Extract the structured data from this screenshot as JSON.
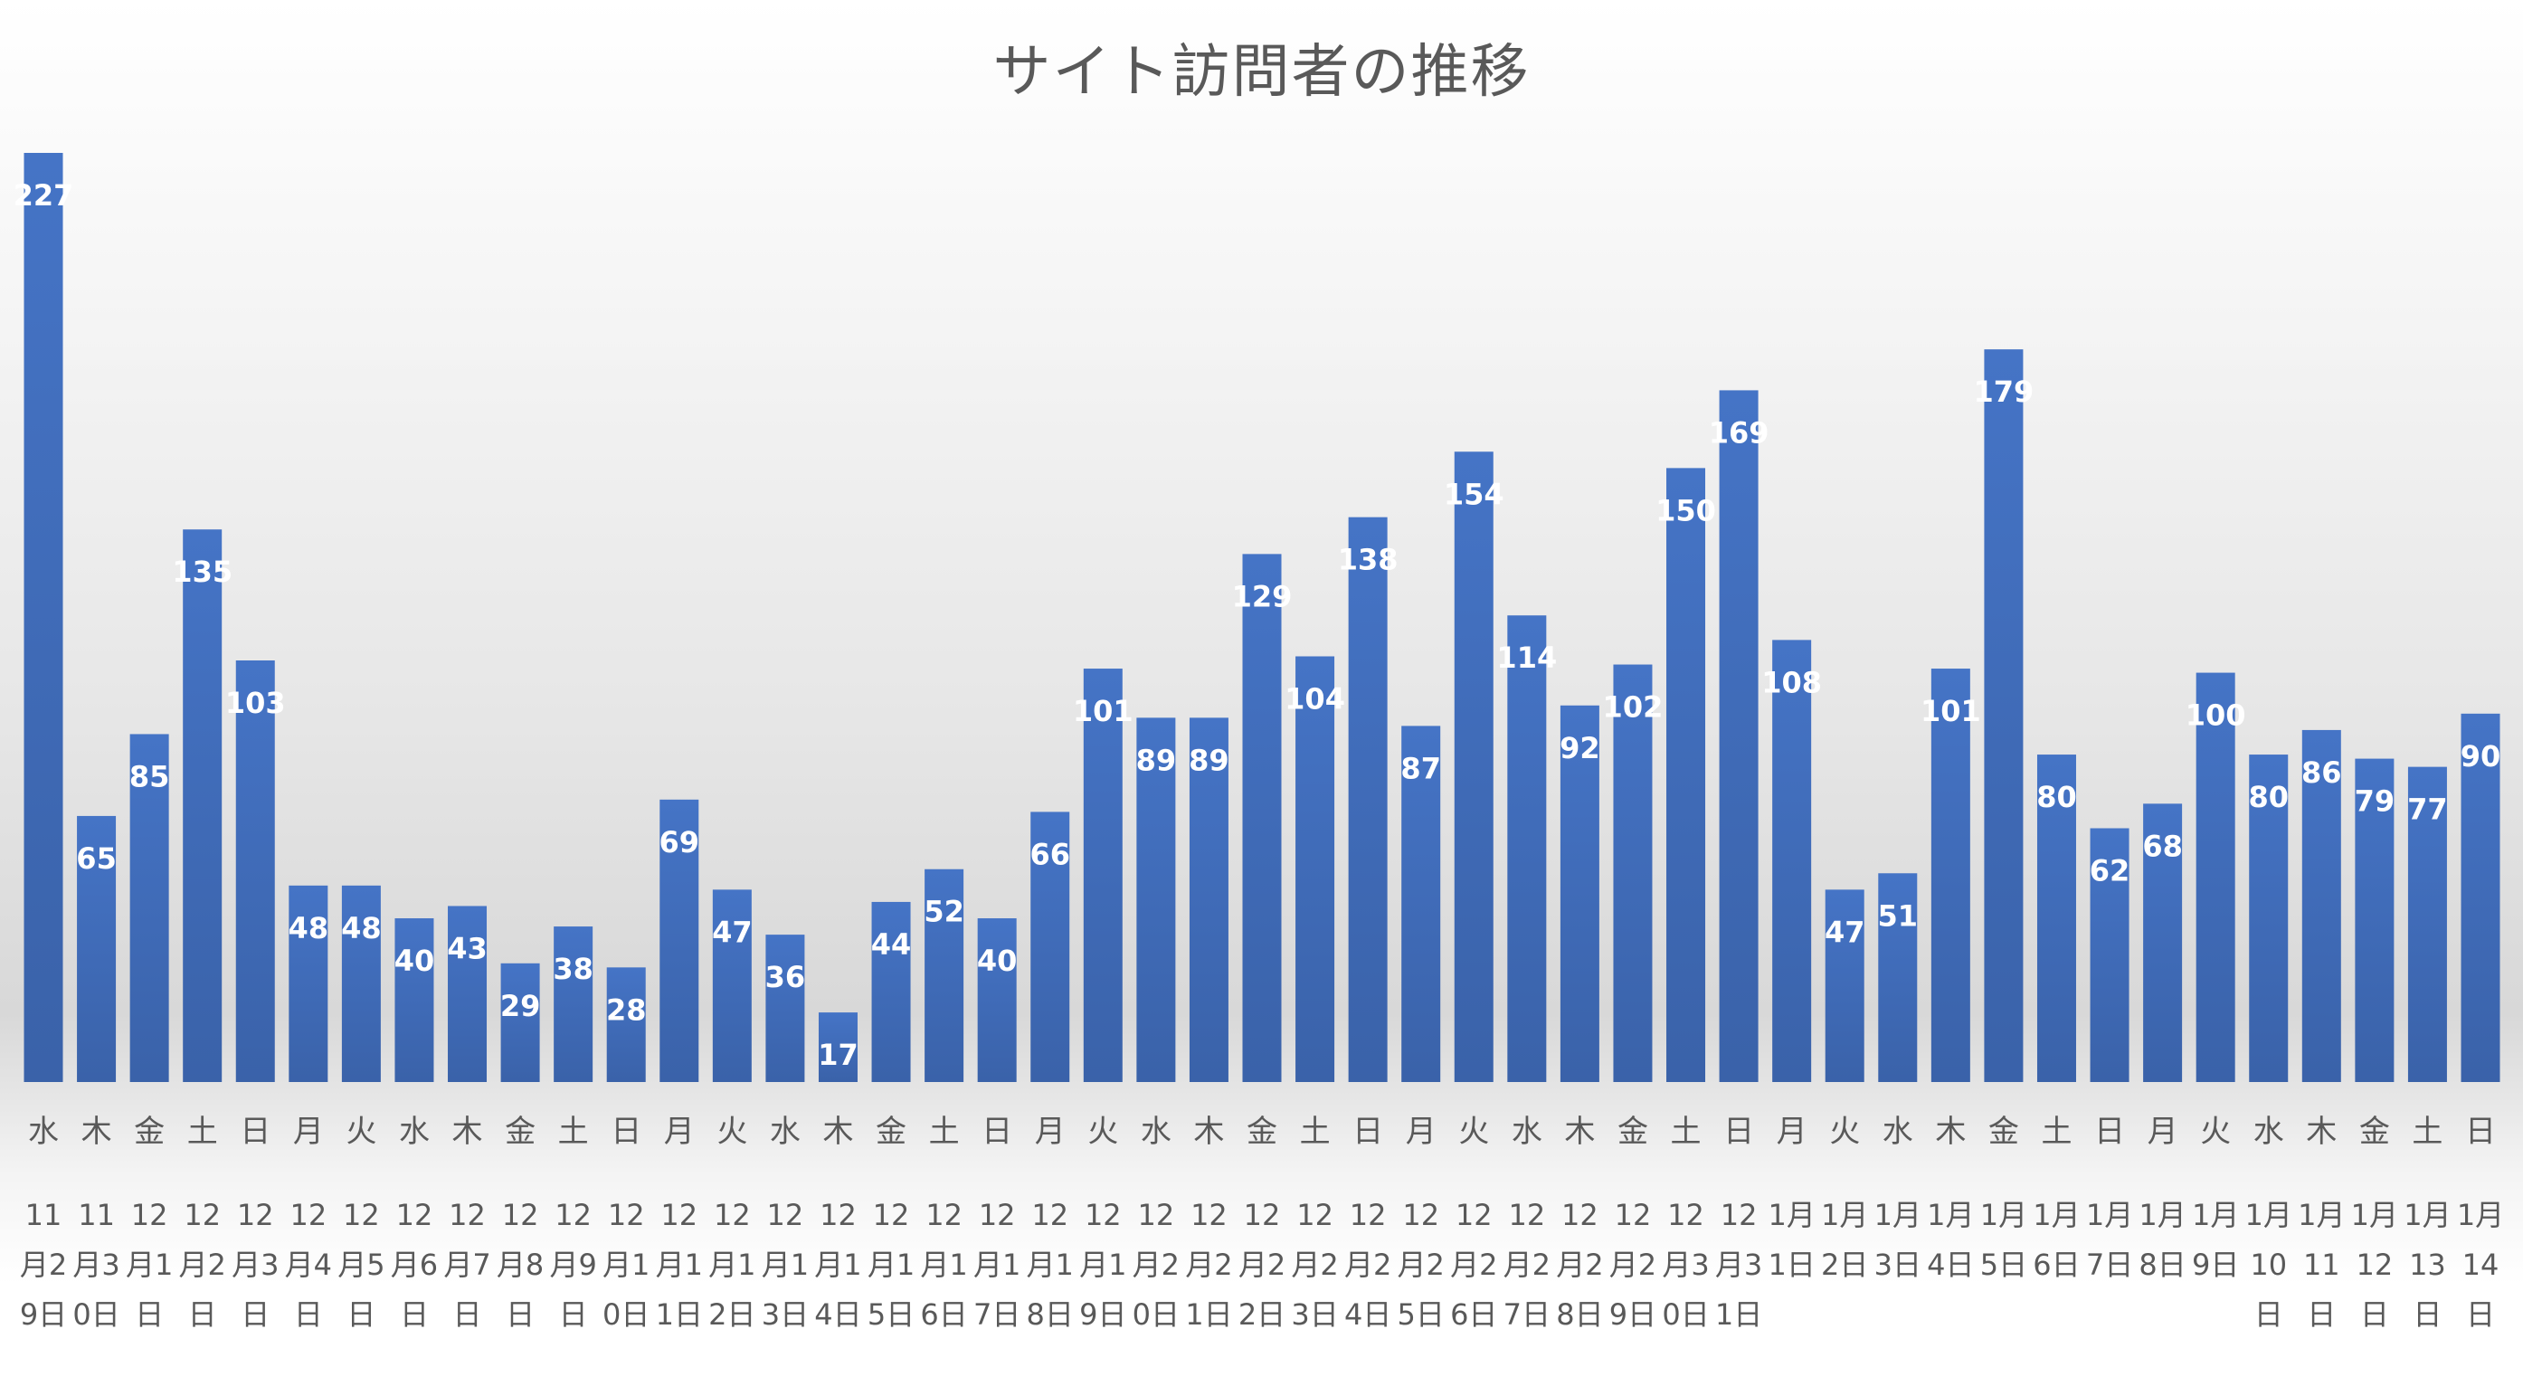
{
  "chart_data": {
    "type": "bar",
    "title": "サイト訪問者の推移",
    "xlabel": "",
    "ylabel": "",
    "ylim": [
      0,
      230
    ],
    "grid": false,
    "legend": "none",
    "bar_color": "#4472c4",
    "categories": [
      {
        "weekday": "水",
        "date": "11月29日"
      },
      {
        "weekday": "木",
        "date": "11月30日"
      },
      {
        "weekday": "金",
        "date": "12月1日"
      },
      {
        "weekday": "土",
        "date": "12月2日"
      },
      {
        "weekday": "日",
        "date": "12月3日"
      },
      {
        "weekday": "月",
        "date": "12月4日"
      },
      {
        "weekday": "火",
        "date": "12月5日"
      },
      {
        "weekday": "水",
        "date": "12月6日"
      },
      {
        "weekday": "木",
        "date": "12月7日"
      },
      {
        "weekday": "金",
        "date": "12月8日"
      },
      {
        "weekday": "土",
        "date": "12月9日"
      },
      {
        "weekday": "日",
        "date": "12月10日"
      },
      {
        "weekday": "月",
        "date": "12月11日"
      },
      {
        "weekday": "火",
        "date": "12月12日"
      },
      {
        "weekday": "水",
        "date": "12月13日"
      },
      {
        "weekday": "木",
        "date": "12月14日"
      },
      {
        "weekday": "金",
        "date": "12月15日"
      },
      {
        "weekday": "土",
        "date": "12月16日"
      },
      {
        "weekday": "日",
        "date": "12月17日"
      },
      {
        "weekday": "月",
        "date": "12月18日"
      },
      {
        "weekday": "火",
        "date": "12月19日"
      },
      {
        "weekday": "水",
        "date": "12月20日"
      },
      {
        "weekday": "木",
        "date": "12月21日"
      },
      {
        "weekday": "金",
        "date": "12月22日"
      },
      {
        "weekday": "土",
        "date": "12月23日"
      },
      {
        "weekday": "日",
        "date": "12月24日"
      },
      {
        "weekday": "月",
        "date": "12月25日"
      },
      {
        "weekday": "火",
        "date": "12月26日"
      },
      {
        "weekday": "水",
        "date": "12月27日"
      },
      {
        "weekday": "木",
        "date": "12月28日"
      },
      {
        "weekday": "金",
        "date": "12月29日"
      },
      {
        "weekday": "土",
        "date": "12月30日"
      },
      {
        "weekday": "日",
        "date": "12月31日"
      },
      {
        "weekday": "月",
        "date": "1月1日"
      },
      {
        "weekday": "火",
        "date": "1月2日"
      },
      {
        "weekday": "水",
        "date": "1月3日"
      },
      {
        "weekday": "木",
        "date": "1月4日"
      },
      {
        "weekday": "金",
        "date": "1月5日"
      },
      {
        "weekday": "土",
        "date": "1月6日"
      },
      {
        "weekday": "日",
        "date": "1月7日"
      },
      {
        "weekday": "月",
        "date": "1月8日"
      },
      {
        "weekday": "火",
        "date": "1月9日"
      },
      {
        "weekday": "水",
        "date": "1月10日"
      },
      {
        "weekday": "木",
        "date": "1月11日"
      },
      {
        "weekday": "金",
        "date": "1月12日"
      },
      {
        "weekday": "土",
        "date": "1月13日"
      },
      {
        "weekday": "日",
        "date": "1月14日"
      }
    ],
    "values": [
      227,
      65,
      85,
      135,
      103,
      48,
      48,
      40,
      43,
      29,
      38,
      28,
      69,
      47,
      36,
      17,
      44,
      52,
      40,
      66,
      101,
      89,
      89,
      129,
      104,
      138,
      87,
      154,
      114,
      92,
      102,
      150,
      169,
      108,
      47,
      51,
      101,
      179,
      80,
      62,
      68,
      100,
      80,
      86,
      79,
      77,
      90
    ]
  }
}
